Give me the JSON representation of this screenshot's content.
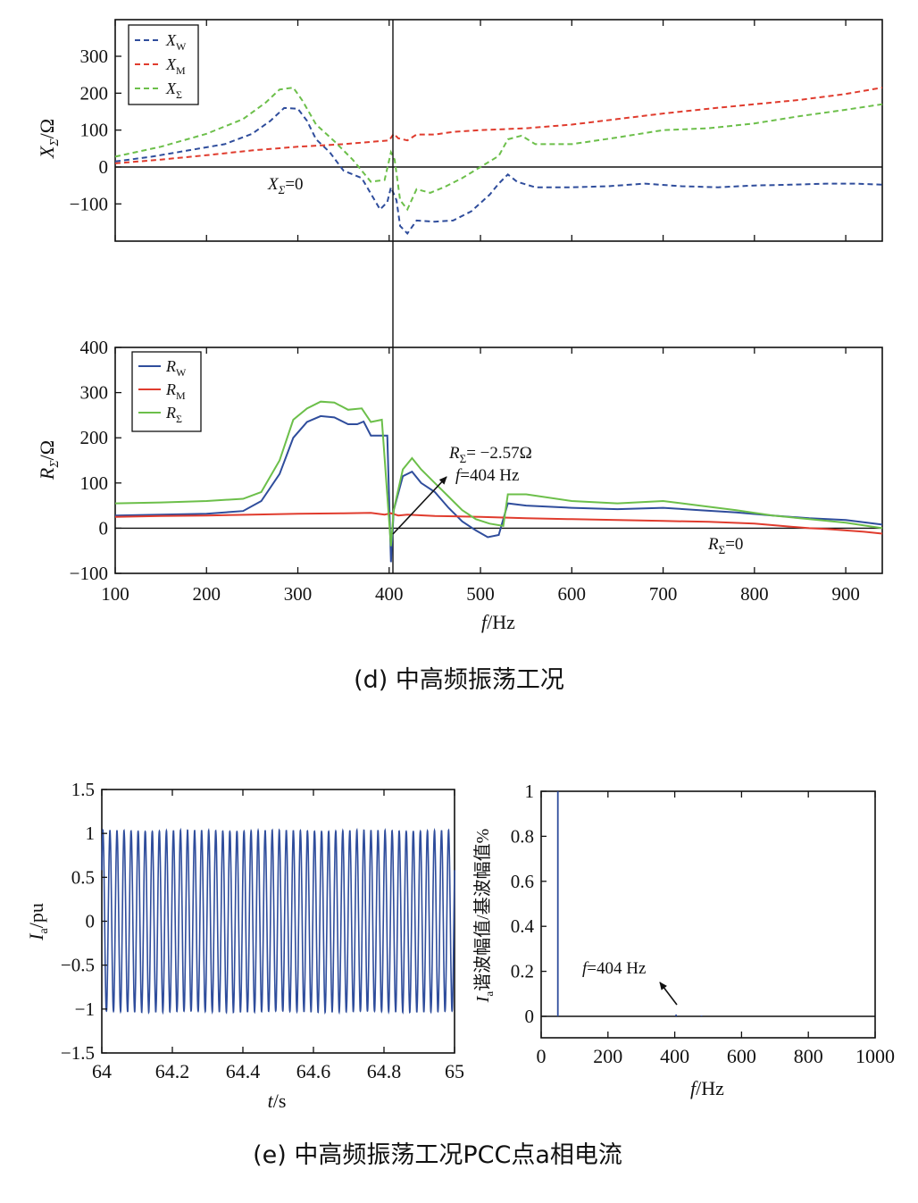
{
  "colors": {
    "blue": "#2f4d9c",
    "red": "#e03c2e",
    "green": "#6cbf4a",
    "black": "#111111"
  },
  "captions": {
    "d": "(d) 中高频振荡工况",
    "e": "(e) 中高频振荡工况PCC点a相电流"
  },
  "chart_data": [
    {
      "id": "x-reactance",
      "type": "line",
      "ylabel": "X_Σ/Ω",
      "xlim": [
        100,
        940
      ],
      "ylim": [
        -200,
        400
      ],
      "yticks": [
        -100,
        0,
        100,
        200,
        300
      ],
      "grid": false,
      "legend": "top-left",
      "line_style": "dashed",
      "annotations": {
        "zero_label": "X_Σ=0"
      },
      "reference_lines": {
        "horizontal_y": 0,
        "vertical_x": 404
      },
      "series": [
        {
          "name": "X_W",
          "color": "#2f4d9c",
          "points": [
            [
              100,
              15
            ],
            [
              140,
              28
            ],
            [
              180,
              45
            ],
            [
              220,
              62
            ],
            [
              250,
              90
            ],
            [
              270,
              125
            ],
            [
              285,
              160
            ],
            [
              300,
              158
            ],
            [
              310,
              125
            ],
            [
              320,
              75
            ],
            [
              335,
              40
            ],
            [
              350,
              -10
            ],
            [
              370,
              -30
            ],
            [
              390,
              -115
            ],
            [
              398,
              -95
            ],
            [
              402,
              -55
            ],
            [
              408,
              -90
            ],
            [
              412,
              -160
            ],
            [
              420,
              -180
            ],
            [
              430,
              -145
            ],
            [
              450,
              -148
            ],
            [
              470,
              -145
            ],
            [
              490,
              -120
            ],
            [
              510,
              -75
            ],
            [
              520,
              -45
            ],
            [
              530,
              -20
            ],
            [
              540,
              -40
            ],
            [
              560,
              -55
            ],
            [
              600,
              -55
            ],
            [
              640,
              -52
            ],
            [
              680,
              -45
            ],
            [
              720,
              -52
            ],
            [
              760,
              -55
            ],
            [
              800,
              -50
            ],
            [
              840,
              -48
            ],
            [
              880,
              -45
            ],
            [
              910,
              -45
            ],
            [
              940,
              -48
            ]
          ]
        },
        {
          "name": "X_M",
          "color": "#e03c2e",
          "points": [
            [
              100,
              10
            ],
            [
              150,
              20
            ],
            [
              200,
              32
            ],
            [
              250,
              45
            ],
            [
              300,
              55
            ],
            [
              350,
              62
            ],
            [
              400,
              72
            ],
            [
              405,
              90
            ],
            [
              410,
              78
            ],
            [
              420,
              72
            ],
            [
              430,
              88
            ],
            [
              450,
              88
            ],
            [
              470,
              95
            ],
            [
              500,
              100
            ],
            [
              550,
              105
            ],
            [
              600,
              115
            ],
            [
              650,
              130
            ],
            [
              700,
              145
            ],
            [
              750,
              158
            ],
            [
              800,
              170
            ],
            [
              850,
              182
            ],
            [
              900,
              198
            ],
            [
              940,
              215
            ]
          ]
        },
        {
          "name": "X_Σ",
          "color": "#6cbf4a",
          "points": [
            [
              100,
              28
            ],
            [
              150,
              55
            ],
            [
              200,
              90
            ],
            [
              240,
              130
            ],
            [
              265,
              175
            ],
            [
              280,
              210
            ],
            [
              295,
              215
            ],
            [
              305,
              180
            ],
            [
              320,
              115
            ],
            [
              340,
              70
            ],
            [
              360,
              20
            ],
            [
              380,
              -40
            ],
            [
              395,
              -35
            ],
            [
              402,
              40
            ],
            [
              406,
              20
            ],
            [
              412,
              -90
            ],
            [
              420,
              -115
            ],
            [
              430,
              -60
            ],
            [
              445,
              -70
            ],
            [
              460,
              -55
            ],
            [
              480,
              -30
            ],
            [
              500,
              0
            ],
            [
              520,
              30
            ],
            [
              530,
              75
            ],
            [
              545,
              85
            ],
            [
              560,
              62
            ],
            [
              600,
              62
            ],
            [
              650,
              80
            ],
            [
              700,
              100
            ],
            [
              750,
              105
            ],
            [
              800,
              118
            ],
            [
              850,
              138
            ],
            [
              900,
              155
            ],
            [
              940,
              170
            ]
          ]
        }
      ]
    },
    {
      "id": "r-resistance",
      "type": "line",
      "xlabel": "f/Hz",
      "ylabel": "R_Σ/Ω",
      "xlim": [
        100,
        940
      ],
      "ylim": [
        -100,
        400
      ],
      "xticks": [
        100,
        200,
        300,
        400,
        500,
        600,
        700,
        800,
        900
      ],
      "yticks": [
        -100,
        0,
        100,
        200,
        300,
        400
      ],
      "grid": false,
      "legend": "top-left",
      "line_style": "solid",
      "annotations": {
        "arrow_line1": "R_Σ= −2.57Ω",
        "arrow_line2": "f=404 Hz",
        "zero_label": "R_Σ=0"
      },
      "reference_lines": {
        "horizontal_y": 0,
        "vertical_x": 404
      },
      "series": [
        {
          "name": "R_W",
          "color": "#2f4d9c",
          "points": [
            [
              100,
              28
            ],
            [
              150,
              30
            ],
            [
              200,
              32
            ],
            [
              240,
              38
            ],
            [
              260,
              60
            ],
            [
              280,
              120
            ],
            [
              295,
              200
            ],
            [
              310,
              235
            ],
            [
              325,
              248
            ],
            [
              340,
              245
            ],
            [
              355,
              230
            ],
            [
              365,
              230
            ],
            [
              372,
              236
            ],
            [
              380,
              205
            ],
            [
              398,
              205
            ],
            [
              402,
              -75
            ],
            [
              405,
              40
            ],
            [
              415,
              115
            ],
            [
              425,
              125
            ],
            [
              435,
              100
            ],
            [
              450,
              80
            ],
            [
              465,
              45
            ],
            [
              480,
              15
            ],
            [
              495,
              -5
            ],
            [
              508,
              -20
            ],
            [
              520,
              -15
            ],
            [
              530,
              55
            ],
            [
              550,
              50
            ],
            [
              600,
              45
            ],
            [
              650,
              42
            ],
            [
              700,
              45
            ],
            [
              740,
              40
            ],
            [
              780,
              35
            ],
            [
              820,
              28
            ],
            [
              860,
              22
            ],
            [
              900,
              18
            ],
            [
              940,
              8
            ]
          ]
        },
        {
          "name": "R_M",
          "color": "#e03c2e",
          "points": [
            [
              100,
              25
            ],
            [
              150,
              27
            ],
            [
              200,
              28
            ],
            [
              250,
              30
            ],
            [
              300,
              32
            ],
            [
              350,
              33
            ],
            [
              380,
              34
            ],
            [
              395,
              30
            ],
            [
              402,
              33
            ],
            [
              410,
              28
            ],
            [
              420,
              30
            ],
            [
              450,
              27
            ],
            [
              500,
              25
            ],
            [
              550,
              22
            ],
            [
              600,
              20
            ],
            [
              650,
              18
            ],
            [
              700,
              16
            ],
            [
              750,
              14
            ],
            [
              800,
              10
            ],
            [
              830,
              5
            ],
            [
              860,
              0
            ],
            [
              880,
              -2
            ],
            [
              900,
              -5
            ],
            [
              920,
              -8
            ],
            [
              940,
              -12
            ]
          ]
        },
        {
          "name": "R_Σ",
          "color": "#6cbf4a",
          "points": [
            [
              100,
              55
            ],
            [
              150,
              57
            ],
            [
              200,
              60
            ],
            [
              240,
              65
            ],
            [
              260,
              80
            ],
            [
              280,
              150
            ],
            [
              295,
              240
            ],
            [
              310,
              265
            ],
            [
              325,
              280
            ],
            [
              340,
              278
            ],
            [
              355,
              262
            ],
            [
              370,
              265
            ],
            [
              380,
              235
            ],
            [
              392,
              240
            ],
            [
              402,
              -40
            ],
            [
              405,
              40
            ],
            [
              415,
              130
            ],
            [
              425,
              155
            ],
            [
              435,
              130
            ],
            [
              450,
              100
            ],
            [
              465,
              70
            ],
            [
              480,
              40
            ],
            [
              495,
              20
            ],
            [
              510,
              10
            ],
            [
              525,
              5
            ],
            [
              530,
              75
            ],
            [
              550,
              75
            ],
            [
              600,
              60
            ],
            [
              650,
              55
            ],
            [
              700,
              60
            ],
            [
              740,
              50
            ],
            [
              780,
              40
            ],
            [
              820,
              28
            ],
            [
              860,
              20
            ],
            [
              900,
              12
            ],
            [
              940,
              0
            ]
          ]
        }
      ]
    },
    {
      "id": "current-time",
      "type": "line",
      "xlabel": "t/s",
      "ylabel": "I_a/pu",
      "xlim": [
        64,
        65
      ],
      "ylim": [
        -1.5,
        1.5
      ],
      "xticks": [
        64,
        64.2,
        64.4,
        64.6,
        64.8,
        65
      ],
      "yticks": [
        -1.5,
        -1,
        -0.5,
        0,
        0.5,
        1,
        1.5
      ],
      "grid": false,
      "signal": {
        "amplitude": 1.03,
        "frequency_hz": 50,
        "secondary_frequency_hz": 404,
        "secondary_amplitude": 0.008,
        "color": "#2f4d9c"
      }
    },
    {
      "id": "current-spectrum",
      "type": "bar",
      "xlabel": "f/Hz",
      "ylabel": "I_a谐波幅值/基波幅值%",
      "xlim": [
        0,
        1000
      ],
      "ylim": [
        0,
        1
      ],
      "xticks": [
        0,
        200,
        400,
        600,
        800,
        1000
      ],
      "yticks": [
        0,
        0.2,
        0.4,
        0.6,
        0.8,
        1
      ],
      "grid": false,
      "annotations": {
        "arrow_label": "f=404 Hz"
      },
      "bars": [
        {
          "f": 50,
          "value": 1.0
        },
        {
          "f": 404,
          "value": 0.008
        },
        {
          "f": 480,
          "value": 0.004
        }
      ]
    }
  ]
}
